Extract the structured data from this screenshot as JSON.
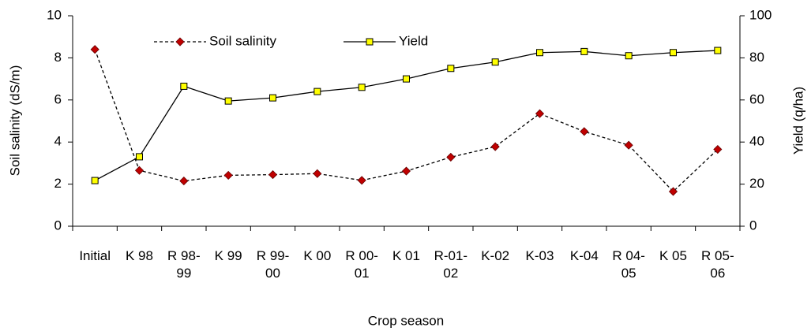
{
  "chart_data": {
    "type": "line",
    "x_label": "Crop season",
    "y_label": "Soil salinity (dS/m)",
    "y2_label": "Yield (q/ha)",
    "categories": [
      "Initial",
      "K 98",
      "R 98-99",
      "K 99",
      "R 99-00",
      "K 00",
      "R 00-01",
      "K 01",
      "R-01-02",
      "K-02",
      "K-03",
      "K-04",
      "R 04-05",
      "K 05",
      "R 05-06"
    ],
    "series": [
      {
        "name": "Soil salinity",
        "color": "#c00000",
        "line_style": "dashed",
        "marker": "diamond",
        "values": [
          8.4,
          2.65,
          2.15,
          2.42,
          2.45,
          2.5,
          2.18,
          2.62,
          3.28,
          3.78,
          5.35,
          4.5,
          3.85,
          1.65,
          3.65
        ]
      },
      {
        "name": "Yield",
        "color": "#ffff00",
        "line_style": "solid",
        "marker": "square",
        "axis": "y2",
        "values": [
          21.7,
          33,
          66.5,
          59.5,
          61,
          64,
          66,
          70,
          75,
          78,
          82.5,
          83,
          81,
          82.5,
          83.5
        ]
      }
    ],
    "ylim": [
      0,
      10
    ],
    "yticks": [
      0,
      2,
      4,
      6,
      8,
      10
    ],
    "y2lim": [
      0,
      100
    ],
    "y2ticks": [
      0,
      20,
      40,
      60,
      80,
      100
    ],
    "legend": "top"
  }
}
